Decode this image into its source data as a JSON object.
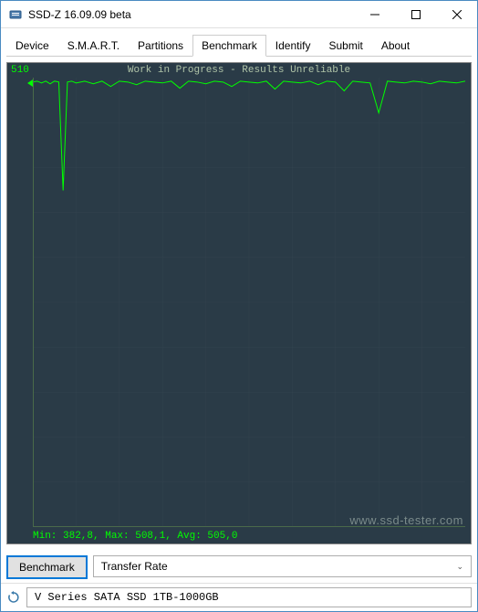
{
  "window": {
    "title": "SSD-Z 16.09.09 beta"
  },
  "tabs": [
    {
      "label": "Device"
    },
    {
      "label": "S.M.A.R.T."
    },
    {
      "label": "Partitions"
    },
    {
      "label": "Benchmark"
    },
    {
      "label": "Identify"
    },
    {
      "label": "Submit"
    },
    {
      "label": "About"
    }
  ],
  "active_tab_index": 3,
  "chart": {
    "title": "Work in Progress - Results Unreliable",
    "y_max_label": "510",
    "stats_text": "Min: 382,8, Max: 508,1, Avg: 505,0",
    "colors": {
      "background": "#2a3b47",
      "grid": "#3a4b57",
      "trace": "#00ff00",
      "text_title": "#b0c4a8",
      "text_axis": "#00ff00"
    },
    "grid_rows": 10,
    "grid_cols": 10,
    "trace": {
      "ymin": 0,
      "ymax": 510,
      "baseline": 505,
      "points": [
        [
          0,
          505
        ],
        [
          1,
          506
        ],
        [
          2,
          504
        ],
        [
          3,
          506
        ],
        [
          4,
          503
        ],
        [
          5,
          506
        ],
        [
          6,
          505
        ],
        [
          7,
          382
        ],
        [
          8,
          505
        ],
        [
          9,
          506
        ],
        [
          10,
          504
        ],
        [
          12,
          506
        ],
        [
          14,
          503
        ],
        [
          16,
          506
        ],
        [
          18,
          500
        ],
        [
          20,
          506
        ],
        [
          22,
          505
        ],
        [
          24,
          502
        ],
        [
          26,
          506
        ],
        [
          28,
          505
        ],
        [
          30,
          504
        ],
        [
          32,
          506
        ],
        [
          34,
          498
        ],
        [
          36,
          506
        ],
        [
          38,
          505
        ],
        [
          40,
          503
        ],
        [
          42,
          506
        ],
        [
          44,
          505
        ],
        [
          46,
          500
        ],
        [
          48,
          506
        ],
        [
          50,
          505
        ],
        [
          52,
          504
        ],
        [
          54,
          506
        ],
        [
          56,
          497
        ],
        [
          58,
          506
        ],
        [
          60,
          505
        ],
        [
          62,
          504
        ],
        [
          64,
          506
        ],
        [
          66,
          502
        ],
        [
          68,
          506
        ],
        [
          70,
          505
        ],
        [
          72,
          495
        ],
        [
          74,
          506
        ],
        [
          76,
          505
        ],
        [
          78,
          504
        ],
        [
          80,
          470
        ],
        [
          82,
          506
        ],
        [
          84,
          505
        ],
        [
          86,
          504
        ],
        [
          88,
          506
        ],
        [
          90,
          505
        ],
        [
          92,
          503
        ],
        [
          94,
          506
        ],
        [
          96,
          505
        ],
        [
          98,
          504
        ],
        [
          100,
          506
        ]
      ]
    }
  },
  "buttons": {
    "benchmark": "Benchmark",
    "select_value": "Transfer Rate"
  },
  "statusbar": {
    "device": "V Series SATA SSD 1TB-1000GB"
  },
  "watermark": "www.ssd-tester.com"
}
